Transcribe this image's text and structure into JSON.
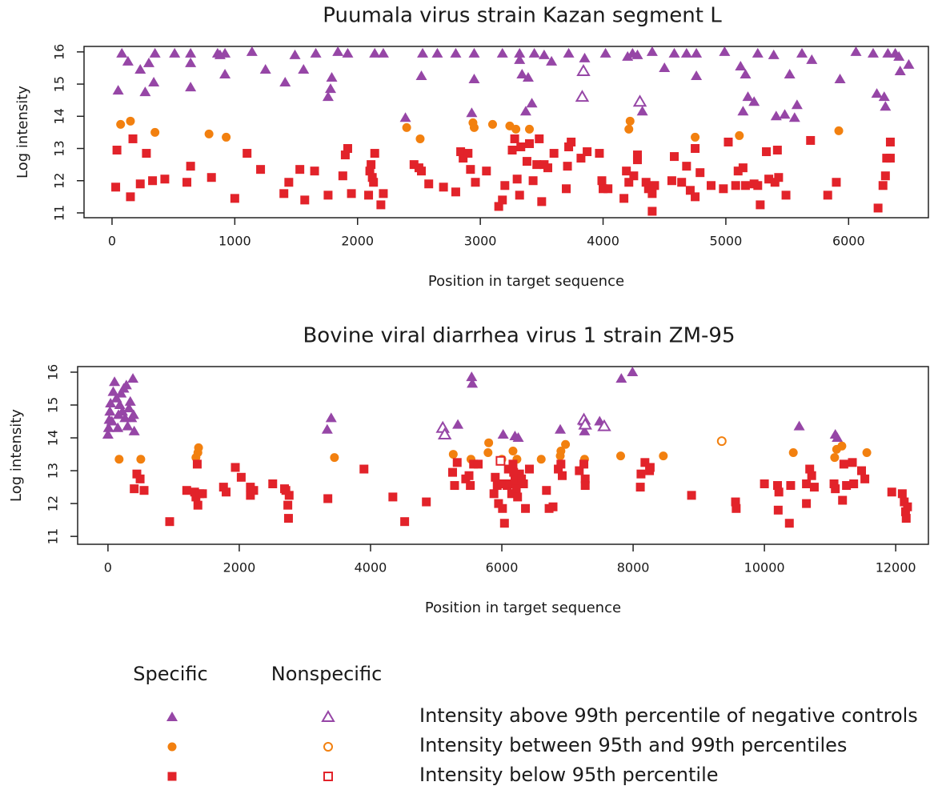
{
  "chart_data": [
    {
      "type": "scatter",
      "title": "Puumala virus strain Kazan segment L",
      "xlabel": "Position in target sequence",
      "ylabel": "Log intensity",
      "xlim": [
        -228,
        6650
      ],
      "ylim": [
        10.85,
        16.17
      ],
      "xticks": [
        0,
        1000,
        2000,
        3000,
        4000,
        5000,
        6000
      ],
      "yticks": [
        11,
        12,
        13,
        14,
        15,
        16
      ],
      "series": [
        {
          "marker": "triangle",
          "filled": true,
          "color": "#9646a6",
          "x": [
            50,
            80,
            130,
            230,
            270,
            300,
            340,
            350,
            510,
            640,
            640,
            640,
            860,
            880,
            920,
            920,
            1140,
            1250,
            1410,
            1490,
            1560,
            1660,
            1760,
            1790,
            1780,
            1840,
            1920,
            2140,
            2210,
            2390,
            2520,
            2530,
            2650,
            2800,
            2930,
            2950,
            2950,
            3180,
            3320,
            3320,
            3340,
            3370,
            3390,
            3420,
            3440,
            3520,
            3580,
            3720,
            3850,
            4020,
            4200,
            4240,
            4280,
            4320,
            4400,
            4500,
            4580,
            4680,
            4760,
            4760,
            4990,
            5120,
            5140,
            5160,
            5180,
            5230,
            5260,
            5390,
            5410,
            5480,
            5520,
            5560,
            5580,
            5620,
            5700,
            5930,
            6060,
            6200,
            6230,
            6290,
            6300,
            6320,
            6410,
            6420,
            6490,
            6380
          ],
          "values": [
            14.8,
            15.95,
            15.7,
            15.45,
            14.75,
            15.65,
            15.05,
            15.95,
            15.95,
            15.95,
            15.65,
            14.9,
            15.95,
            15.9,
            15.95,
            15.3,
            16,
            15.45,
            15.05,
            15.9,
            15.45,
            15.95,
            14.6,
            15.2,
            14.85,
            16,
            15.95,
            15.95,
            15.95,
            13.95,
            15.25,
            15.95,
            15.95,
            15.95,
            14.1,
            15.15,
            15.95,
            15.95,
            15.75,
            15.95,
            15.3,
            14.15,
            15.2,
            14.4,
            15.95,
            15.9,
            15.7,
            15.95,
            15.8,
            15.95,
            15.85,
            15.95,
            15.9,
            14.15,
            16,
            15.5,
            15.95,
            15.95,
            15.95,
            15.25,
            16,
            15.55,
            14.15,
            15.3,
            14.6,
            14.45,
            15.95,
            15.9,
            14,
            14.05,
            15.3,
            13.95,
            14.35,
            15.95,
            15.75,
            15.15,
            16,
            15.95,
            14.7,
            14.6,
            14.3,
            15.95,
            15.85,
            15.4,
            15.6,
            15.95
          ]
        },
        {
          "marker": "triangle",
          "filled": false,
          "color": "#9646a6",
          "x": [
            3840,
            3830,
            4300
          ],
          "values": [
            15.4,
            14.6,
            14.45
          ]
        },
        {
          "marker": "circle",
          "filled": true,
          "color": "#f2800f",
          "x": [
            70,
            150,
            350,
            790,
            930,
            2400,
            2510,
            2940,
            2950,
            3100,
            3240,
            3290,
            3400,
            4220,
            4210,
            4750,
            5110,
            5920
          ],
          "values": [
            13.75,
            13.85,
            13.5,
            13.45,
            13.35,
            13.65,
            13.3,
            13.8,
            13.65,
            13.75,
            13.7,
            13.6,
            13.6,
            13.85,
            13.6,
            13.35,
            13.4,
            13.55
          ]
        },
        {
          "marker": "square",
          "filled": true,
          "color": "#e2232a",
          "x": [
            30,
            40,
            150,
            170,
            230,
            280,
            330,
            430,
            610,
            640,
            810,
            1000,
            1100,
            1210,
            1400,
            1440,
            1530,
            1570,
            1650,
            1760,
            1880,
            1900,
            1920,
            1950,
            2090,
            2100,
            2110,
            2120,
            2130,
            2140,
            2190,
            2210,
            2460,
            2500,
            2520,
            2580,
            2700,
            2800,
            2840,
            2860,
            2900,
            2920,
            2960,
            3050,
            3150,
            3180,
            3200,
            3260,
            3280,
            3300,
            3320,
            3330,
            3380,
            3400,
            3430,
            3460,
            3480,
            3500,
            3520,
            3550,
            3600,
            3700,
            3710,
            3720,
            3740,
            3820,
            3870,
            3970,
            3990,
            4000,
            4040,
            4170,
            4190,
            4210,
            4250,
            4280,
            4280,
            4350,
            4370,
            4400,
            4400,
            4420,
            4560,
            4580,
            4640,
            4680,
            4710,
            4750,
            4750,
            4790,
            4880,
            4980,
            5020,
            5080,
            5100,
            5140,
            5160,
            5230,
            5260,
            5280,
            5330,
            5350,
            5400,
            5420,
            5430,
            5490,
            5690,
            5830,
            5900,
            6240,
            6280,
            6300,
            6310,
            6340,
            6340
          ],
          "values": [
            11.8,
            12.95,
            11.5,
            13.3,
            11.9,
            12.85,
            12,
            12.05,
            11.95,
            12.45,
            12.1,
            11.45,
            12.85,
            12.35,
            11.6,
            11.95,
            12.35,
            11.4,
            12.3,
            11.55,
            12.15,
            12.8,
            13,
            11.6,
            11.55,
            12.3,
            12.5,
            12.1,
            11.95,
            12.85,
            11.25,
            11.6,
            12.5,
            12.4,
            12.3,
            11.9,
            11.8,
            11.65,
            12.9,
            12.7,
            12.85,
            12.35,
            11.95,
            12.3,
            11.2,
            11.4,
            11.85,
            12.95,
            13.3,
            12.05,
            11.55,
            13.05,
            12.6,
            13.15,
            12,
            12.5,
            13.3,
            11.35,
            12.5,
            12.4,
            12.85,
            11.75,
            12.45,
            13.05,
            13.2,
            12.7,
            12.9,
            12.85,
            12,
            11.75,
            11.75,
            11.45,
            12.3,
            11.95,
            12.15,
            12.65,
            12.8,
            11.95,
            11.75,
            11.05,
            11.6,
            11.85,
            12,
            12.75,
            11.95,
            12.45,
            11.7,
            13,
            11.5,
            12.25,
            11.85,
            11.75,
            13.2,
            11.85,
            12.3,
            12.4,
            11.85,
            11.9,
            11.85,
            11.25,
            12.9,
            12.05,
            11.95,
            12.95,
            12.1,
            11.55,
            13.25,
            11.55,
            11.95,
            11.15,
            11.85,
            12.15,
            12.7,
            12.7,
            13.2
          ]
        }
      ]
    },
    {
      "type": "scatter",
      "title": "Bovine viral diarrhea virus 1 strain ZM-95",
      "xlabel": "Position in target sequence",
      "ylabel": "Log intensity",
      "xlim": [
        -462,
        12498
      ],
      "ylim": [
        10.76,
        16.17
      ],
      "xticks": [
        0,
        2000,
        4000,
        6000,
        8000,
        10000,
        12000
      ],
      "yticks": [
        11,
        12,
        13,
        14,
        15,
        16
      ],
      "series": [
        {
          "marker": "triangle",
          "filled": true,
          "color": "#9646a6",
          "x": [
            0,
            10,
            20,
            30,
            40,
            60,
            80,
            100,
            130,
            150,
            160,
            180,
            200,
            220,
            240,
            260,
            280,
            300,
            320,
            340,
            360,
            380,
            400,
            390,
            3340,
            3400,
            5330,
            5540,
            5550,
            6020,
            6200,
            6250,
            6890,
            7250,
            7260,
            7490,
            7820,
            7990,
            10530,
            11080,
            11110
          ],
          "values": [
            14.1,
            14.3,
            14.55,
            14.8,
            15.05,
            14.5,
            15.4,
            15.7,
            15.2,
            14.3,
            14.7,
            15,
            15.35,
            14.8,
            15.5,
            14.6,
            15.6,
            14.35,
            14.9,
            15.1,
            14.6,
            15.8,
            14.2,
            14.7,
            14.25,
            14.6,
            14.4,
            15.85,
            15.65,
            14.1,
            14.05,
            14,
            14.25,
            14.5,
            14.2,
            14.5,
            15.8,
            16,
            14.35,
            14.1,
            14
          ]
        },
        {
          "marker": "triangle",
          "filled": false,
          "color": "#9646a6",
          "x": [
            5100,
            5130,
            7250,
            7270,
            7560
          ],
          "values": [
            14.3,
            14.1,
            14.55,
            14.4,
            14.35
          ]
        },
        {
          "marker": "circle",
          "filled": true,
          "color": "#f2800f",
          "x": [
            170,
            500,
            1340,
            1370,
            1380,
            3450,
            5260,
            5530,
            5800,
            5790,
            6000,
            6170,
            6230,
            6600,
            6900,
            6890,
            6970,
            7260,
            7810,
            8460,
            10440,
            11070,
            11100,
            11180,
            11560
          ],
          "values": [
            13.35,
            13.35,
            13.4,
            13.55,
            13.7,
            13.4,
            13.5,
            13.35,
            13.85,
            13.55,
            13.35,
            13.6,
            13.35,
            13.35,
            13.6,
            13.45,
            13.8,
            13.35,
            13.45,
            13.45,
            13.55,
            13.4,
            13.65,
            13.75,
            13.55
          ]
        },
        {
          "marker": "circle",
          "filled": false,
          "color": "#f2800f",
          "x": [
            9350
          ],
          "values": [
            13.9
          ]
        },
        {
          "marker": "square",
          "filled": true,
          "color": "#e2232a",
          "x": [
            400,
            440,
            490,
            550,
            940,
            1200,
            1320,
            1340,
            1360,
            1370,
            1400,
            1440,
            1760,
            1800,
            1940,
            2030,
            2170,
            2170,
            2220,
            2510,
            2690,
            2710,
            2740,
            2750,
            2760,
            3350,
            3900,
            4340,
            4520,
            4850,
            5250,
            5280,
            5320,
            5450,
            5500,
            5520,
            5570,
            5640,
            5880,
            5900,
            5930,
            5950,
            6000,
            6010,
            6040,
            6080,
            6100,
            6120,
            6150,
            6170,
            6180,
            6200,
            6220,
            6240,
            6270,
            6300,
            6330,
            6360,
            6420,
            6680,
            6720,
            6780,
            6860,
            6900,
            6920,
            7180,
            7250,
            7270,
            7270,
            8110,
            8120,
            8180,
            8250,
            8260,
            8890,
            9560,
            9570,
            10000,
            10200,
            10210,
            10220,
            10380,
            10400,
            10640,
            10640,
            10690,
            10720,
            10760,
            11060,
            11080,
            11190,
            11210,
            11250,
            11340,
            11360,
            11480,
            11530,
            11940,
            12100,
            12130,
            12150,
            12160,
            12180
          ],
          "values": [
            12.45,
            12.9,
            12.75,
            12.4,
            11.45,
            12.4,
            12.35,
            12.2,
            13.2,
            11.95,
            12.3,
            12.3,
            12.5,
            12.35,
            13.1,
            12.8,
            12.5,
            12.25,
            12.4,
            12.6,
            12.45,
            12.4,
            11.95,
            11.55,
            12.25,
            12.15,
            13.05,
            12.2,
            11.45,
            12.05,
            12.95,
            12.55,
            13.25,
            12.75,
            12.85,
            12.55,
            13.2,
            13.2,
            12.3,
            12.8,
            12.55,
            12,
            12.6,
            11.85,
            11.4,
            12.55,
            13.05,
            12.6,
            12.3,
            13.2,
            12.95,
            12.7,
            12.45,
            12.2,
            12.9,
            12.75,
            12.6,
            11.85,
            13.05,
            12.4,
            11.85,
            11.9,
            13.05,
            13.2,
            12.85,
            13,
            13.2,
            12.75,
            12.55,
            12.5,
            12.9,
            13.25,
            13,
            13.1,
            12.25,
            12.05,
            11.85,
            12.6,
            12.55,
            11.8,
            12.35,
            11.4,
            12.55,
            12,
            12.6,
            13.05,
            12.85,
            12.5,
            12.6,
            12.45,
            12.1,
            13.2,
            12.55,
            13.25,
            12.6,
            13,
            12.75,
            12.35,
            12.3,
            12.05,
            11.75,
            11.55,
            11.9
          ]
        },
        {
          "marker": "square",
          "filled": false,
          "color": "#e2232a",
          "x": [
            5980
          ],
          "values": [
            13.3
          ]
        }
      ]
    }
  ],
  "legend": {
    "columns": [
      "Specific",
      "Nonspecific"
    ],
    "rows": [
      {
        "label": "Intensity above 99th percentile of negative controls",
        "marker": "triangle",
        "color": "#9646a6"
      },
      {
        "label": "Intensity between 95th and 99th percentiles",
        "marker": "circle",
        "color": "#f2800f"
      },
      {
        "label": "Intensity below 95th percentile",
        "marker": "square",
        "color": "#e2232a"
      }
    ]
  }
}
